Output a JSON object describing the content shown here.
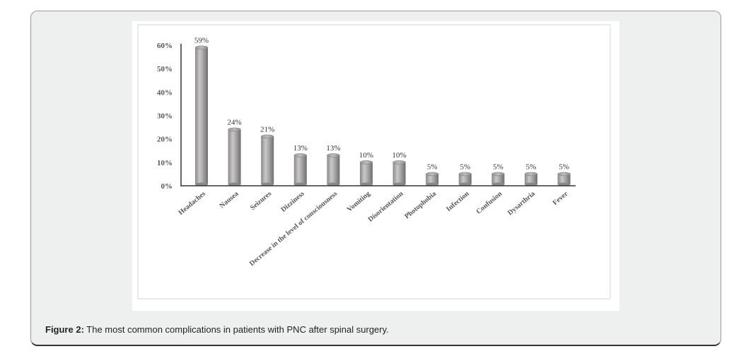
{
  "figure": {
    "caption_label": "Figure 2:",
    "caption_text": " The most common complications in patients with PNC after spinal surgery."
  },
  "chart_data": {
    "type": "bar",
    "title": "",
    "xlabel": "",
    "ylabel": "",
    "categories": [
      "Headaches",
      "Nausea",
      "Seizures",
      "Dizziness",
      "Decrease in the level of consciousness",
      "Vomiting",
      "Disorientation",
      "Photophobia",
      "Infection",
      "Confusion",
      "Dysarthria",
      "Fever"
    ],
    "values": [
      59,
      24,
      21,
      13,
      13,
      10,
      10,
      5,
      5,
      5,
      5,
      5
    ],
    "data_labels": [
      "59%",
      "24%",
      "21%",
      "13%",
      "13%",
      "10%",
      "10%",
      "5%",
      "5%",
      "5%",
      "5%",
      "5%"
    ],
    "yticks": [
      0,
      10,
      20,
      30,
      40,
      50,
      60
    ],
    "ytick_labels": [
      "0%",
      "10%",
      "20%",
      "30%",
      "40%",
      "50%",
      "60%"
    ],
    "ylim": [
      0,
      60
    ],
    "grid": false,
    "legend": "none",
    "bar_style": "3d-cylinder",
    "colors": {
      "bar": "#a8a6a6",
      "bar_dark": "#777575",
      "bar_light": "#cfcdcd",
      "axis": "#333333",
      "text": "#444444",
      "panel_bg": "#eef0ef"
    }
  }
}
